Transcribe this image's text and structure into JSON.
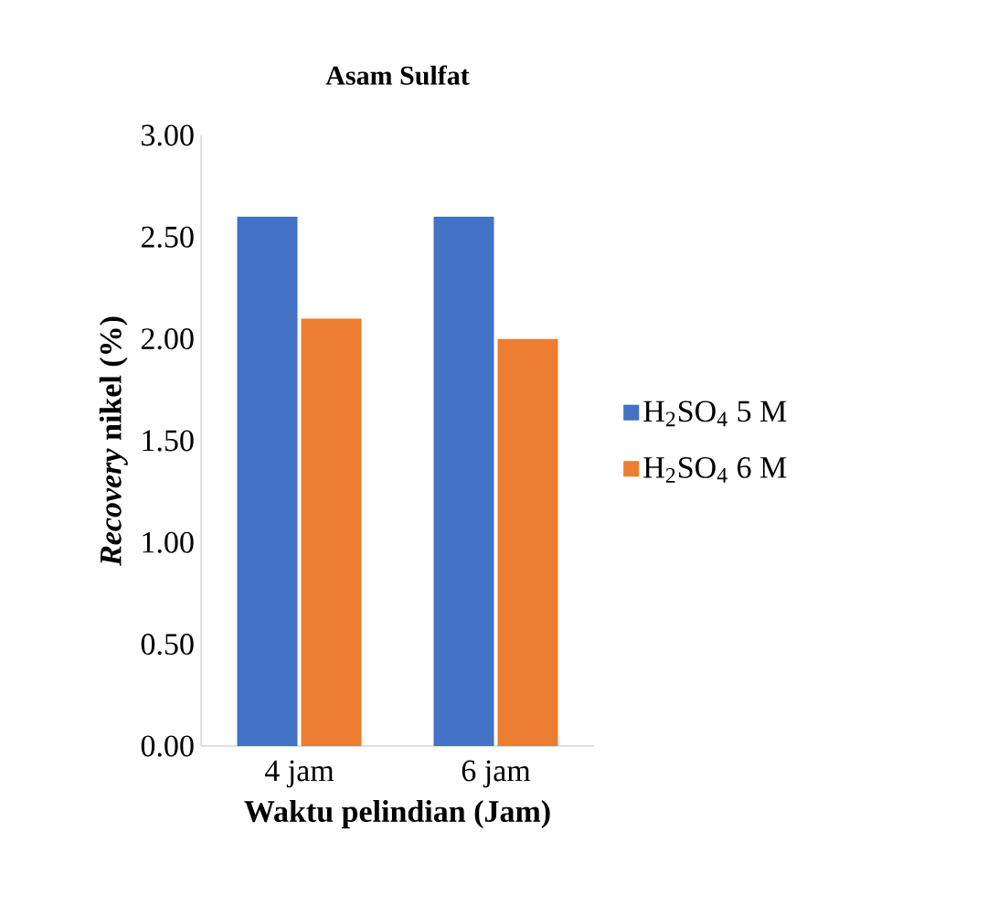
{
  "chart_data": {
    "type": "bar",
    "title": "Asam Sulfat",
    "xlabel": "Waktu pelindian (Jam)",
    "ylabel": "*Recovery* nikel (%)",
    "categories": [
      "4 jam",
      "6 jam"
    ],
    "series": [
      {
        "name": "H$_{2}$SO$_{4}$ 5 M",
        "color": "#4472c4",
        "values": [
          2.6,
          2.6
        ]
      },
      {
        "name": "H$_{2}$SO$_{4}$ 6 M",
        "color": "#ed7d31",
        "values": [
          2.1,
          2.0
        ]
      }
    ],
    "ylim": [
      0,
      3
    ],
    "yticks": [
      {
        "value": 0,
        "label": "0.00"
      },
      {
        "value": 0.5,
        "label": "0.50"
      },
      {
        "value": 1,
        "label": "1.00"
      },
      {
        "value": 1.5,
        "label": "1.50"
      },
      {
        "value": 2,
        "label": "2.00"
      },
      {
        "value": 2.5,
        "label": "2.50"
      },
      {
        "value": 3,
        "label": "3.00"
      }
    ],
    "legend": "right",
    "grid": false
  }
}
